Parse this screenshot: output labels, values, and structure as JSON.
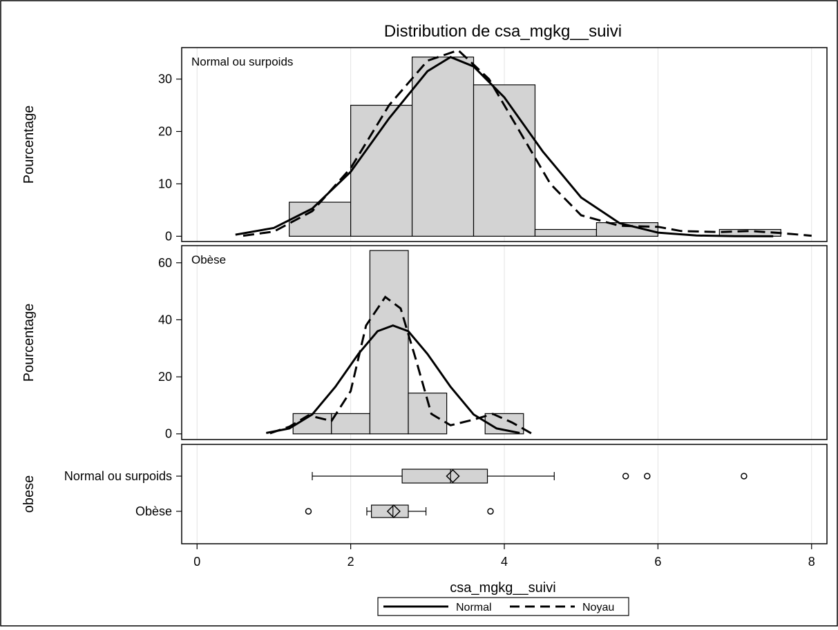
{
  "chart_data": {
    "type": "bar",
    "title": "Distribution de csa_mgkg__suivi",
    "xlabel": "csa_mgkg__suivi",
    "xlim": [
      -0.2,
      8.2
    ],
    "xticks": [
      0,
      2,
      4,
      6,
      8
    ],
    "grid": true,
    "legend_position": "bottom",
    "legend": [
      {
        "name": "Normal",
        "style": "solid"
      },
      {
        "name": "Noyau",
        "style": "dashed"
      }
    ],
    "panels": [
      {
        "label": "Normal ou surpoids",
        "ylabel": "Pourcentage",
        "ylim": [
          -1,
          36
        ],
        "yticks": [
          0,
          10,
          20,
          30
        ],
        "bins": [
          {
            "x0": 1.2,
            "x1": 2.0,
            "value": 6.5
          },
          {
            "x0": 2.0,
            "x1": 2.8,
            "value": 25.0
          },
          {
            "x0": 2.8,
            "x1": 3.6,
            "value": 34.2
          },
          {
            "x0": 3.6,
            "x1": 4.4,
            "value": 28.9
          },
          {
            "x0": 4.4,
            "x1": 5.2,
            "value": 1.3
          },
          {
            "x0": 5.2,
            "x1": 6.0,
            "value": 2.6
          },
          {
            "x0": 6.0,
            "x1": 6.8,
            "value": 0
          },
          {
            "x0": 6.8,
            "x1": 7.6,
            "value": 1.3
          }
        ],
        "normal_curve": [
          [
            0.5,
            0.3
          ],
          [
            1.0,
            1.6
          ],
          [
            1.5,
            5.3
          ],
          [
            2.0,
            12.3
          ],
          [
            2.5,
            22.5
          ],
          [
            3.0,
            31.5
          ],
          [
            3.3,
            34.2
          ],
          [
            3.6,
            32.4
          ],
          [
            4.0,
            26.5
          ],
          [
            4.5,
            16.2
          ],
          [
            5.0,
            7.4
          ],
          [
            5.5,
            2.5
          ],
          [
            6.0,
            0.7
          ],
          [
            6.5,
            0.15
          ],
          [
            7.0,
            0.03
          ],
          [
            7.5,
            0
          ]
        ],
        "kernel_curve": [
          [
            0.6,
            0.1
          ],
          [
            1.0,
            0.9
          ],
          [
            1.5,
            4.8
          ],
          [
            2.0,
            13.0
          ],
          [
            2.5,
            25.0
          ],
          [
            3.0,
            33.5
          ],
          [
            3.4,
            35.5
          ],
          [
            3.8,
            30.0
          ],
          [
            4.2,
            20.0
          ],
          [
            4.6,
            10.0
          ],
          [
            5.0,
            4.0
          ],
          [
            5.5,
            2.0
          ],
          [
            6.0,
            1.8
          ],
          [
            6.3,
            1.0
          ],
          [
            6.8,
            0.8
          ],
          [
            7.2,
            1.0
          ],
          [
            7.6,
            0.6
          ],
          [
            8.0,
            0.1
          ]
        ]
      },
      {
        "label": "Obèse",
        "ylabel": "Pourcentage",
        "ylim": [
          -2,
          66
        ],
        "yticks": [
          0,
          20,
          40,
          60
        ],
        "bins": [
          {
            "x0": 1.25,
            "x1": 1.75,
            "value": 7.1
          },
          {
            "x0": 1.75,
            "x1": 2.25,
            "value": 7.1
          },
          {
            "x0": 2.25,
            "x1": 2.75,
            "value": 64.3
          },
          {
            "x0": 2.75,
            "x1": 3.25,
            "value": 14.3
          },
          {
            "x0": 3.25,
            "x1": 3.75,
            "value": 0
          },
          {
            "x0": 3.75,
            "x1": 4.25,
            "value": 7.1
          }
        ],
        "normal_curve": [
          [
            0.9,
            0.3
          ],
          [
            1.2,
            1.9
          ],
          [
            1.5,
            6.8
          ],
          [
            1.8,
            16.5
          ],
          [
            2.1,
            28.0
          ],
          [
            2.35,
            36.0
          ],
          [
            2.55,
            38.0
          ],
          [
            2.75,
            36.0
          ],
          [
            3.0,
            28.0
          ],
          [
            3.3,
            16.5
          ],
          [
            3.6,
            6.8
          ],
          [
            3.9,
            1.9
          ],
          [
            4.2,
            0.3
          ]
        ],
        "kernel_curve": [
          [
            0.95,
            0.2
          ],
          [
            1.2,
            2.5
          ],
          [
            1.45,
            6.5
          ],
          [
            1.75,
            4.5
          ],
          [
            2.0,
            15.0
          ],
          [
            2.2,
            38.0
          ],
          [
            2.45,
            48.0
          ],
          [
            2.65,
            44.0
          ],
          [
            2.85,
            26.0
          ],
          [
            3.05,
            7.0
          ],
          [
            3.3,
            3.0
          ],
          [
            3.6,
            5.0
          ],
          [
            3.85,
            7.0
          ],
          [
            4.1,
            4.0
          ],
          [
            4.35,
            0.2
          ]
        ]
      }
    ],
    "boxplot": {
      "ylabel": "obese",
      "groups": [
        {
          "label": "Normal ou surpoids",
          "whisker_low": 1.5,
          "q1": 2.67,
          "median": 3.3,
          "mean": 3.33,
          "q3": 3.78,
          "whisker_high": 4.65,
          "outliers": [
            5.58,
            5.86,
            7.12
          ]
        },
        {
          "label": "Obèse",
          "whisker_low": 2.21,
          "q1": 2.27,
          "median": 2.55,
          "mean": 2.56,
          "q3": 2.75,
          "whisker_high": 2.98,
          "outliers": [
            1.45,
            3.82
          ]
        }
      ]
    }
  }
}
